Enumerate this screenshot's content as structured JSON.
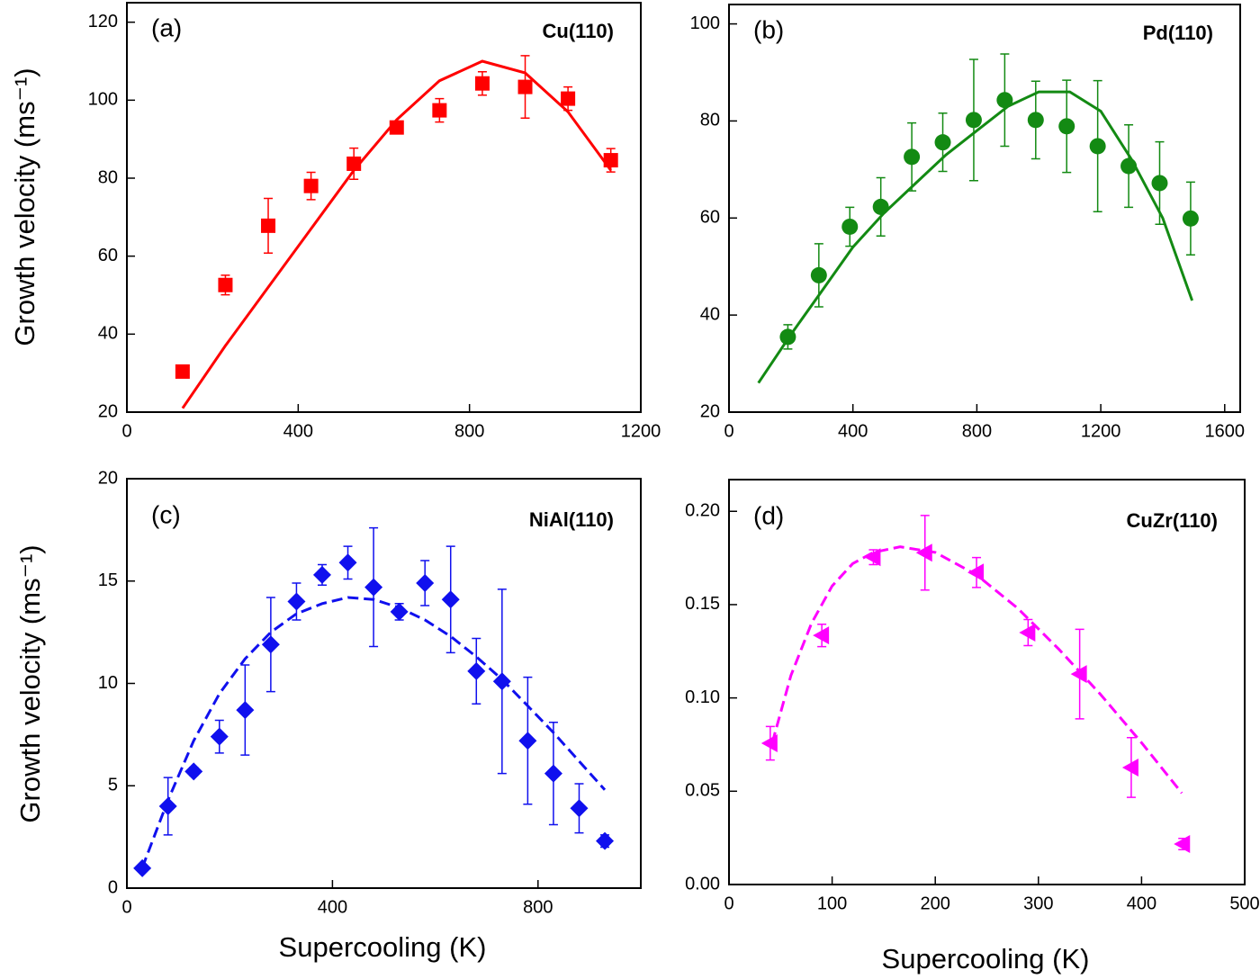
{
  "chart_data": [
    {
      "type": "scatter",
      "panel_label": "(a)",
      "annotation": "Cu(110)",
      "ylabel": "Growth velocity (ms⁻¹)",
      "marker": "square",
      "color": "#ff0000",
      "x": [
        130,
        230,
        330,
        430,
        530,
        630,
        730,
        830,
        930,
        1030,
        1130
      ],
      "values": [
        30.4,
        52.6,
        67.8,
        78,
        83.7,
        93,
        97.4,
        104.3,
        103.4,
        100.4,
        84.6
      ],
      "errors": [
        1.5,
        2.5,
        7,
        3.5,
        4,
        1.5,
        3,
        3,
        8,
        3,
        3
      ],
      "fit": {
        "dashed": false,
        "x": [
          130,
          230,
          330,
          430,
          530,
          630,
          730,
          830,
          930,
          1030,
          1130
        ],
        "values": [
          21,
          37,
          52,
          67,
          82,
          95,
          105,
          110,
          107,
          97,
          82
        ]
      },
      "xlim": [
        0,
        1200
      ],
      "ylim": [
        20,
        125
      ],
      "xticks": [
        0,
        400,
        800,
        1200
      ],
      "yticks": [
        20,
        40,
        60,
        80,
        100,
        120
      ]
    },
    {
      "type": "scatter",
      "panel_label": "(b)",
      "annotation": "Pd(110)",
      "marker": "circle",
      "color": "#138a13",
      "x": [
        190,
        290,
        390,
        490,
        590,
        690,
        790,
        890,
        990,
        1090,
        1190,
        1290,
        1390,
        1490
      ],
      "values": [
        35.5,
        48.2,
        58.2,
        62.3,
        72.6,
        75.6,
        80.2,
        84.3,
        80.2,
        78.9,
        74.8,
        70.7,
        67.2,
        59.9
      ],
      "errors": [
        2.5,
        6.5,
        4,
        6,
        7,
        6,
        12.5,
        9.5,
        8,
        9.5,
        13.5,
        8.5,
        8.5,
        7.5
      ],
      "fit": {
        "dashed": false,
        "x": [
          95,
          200,
          300,
          400,
          500,
          600,
          700,
          800,
          900,
          1000,
          1100,
          1200,
          1300,
          1400,
          1495
        ],
        "values": [
          26,
          36,
          45,
          54,
          61,
          67,
          73,
          78,
          83,
          86,
          86,
          82,
          72,
          60,
          43
        ]
      },
      "xlim": [
        0,
        1650
      ],
      "ylim": [
        20,
        104
      ],
      "xticks": [
        0,
        400,
        800,
        1200,
        1600
      ],
      "yticks": [
        20,
        40,
        60,
        80,
        100
      ]
    },
    {
      "type": "scatter",
      "panel_label": "(c)",
      "annotation": "NiAl(110)",
      "ylabel": "Growth velocity (ms⁻¹)",
      "xlabel": "Supercooling (K)",
      "marker": "diamond",
      "color": "#1010ee",
      "x": [
        30,
        80,
        130,
        180,
        230,
        280,
        330,
        380,
        430,
        480,
        530,
        580,
        630,
        680,
        730,
        780,
        830,
        880,
        930
      ],
      "values": [
        0.97,
        4.0,
        5.7,
        7.4,
        8.7,
        11.9,
        14.0,
        15.3,
        15.9,
        14.7,
        13.5,
        14.9,
        14.1,
        10.6,
        10.1,
        7.2,
        5.6,
        3.9,
        2.3
      ],
      "errors": [
        0.1,
        1.4,
        0.2,
        0.8,
        2.2,
        2.3,
        0.9,
        0.5,
        0.8,
        2.9,
        0.4,
        1.1,
        2.6,
        1.6,
        4.5,
        3.1,
        2.5,
        1.2,
        0.3
      ],
      "fit": {
        "dashed": true,
        "x": [
          30,
          80,
          130,
          180,
          230,
          280,
          330,
          380,
          430,
          480,
          530,
          580,
          630,
          680,
          730,
          780,
          830,
          880,
          930
        ],
        "values": [
          1.0,
          4.3,
          7.2,
          9.5,
          11.2,
          12.5,
          13.4,
          13.9,
          14.2,
          14.1,
          13.7,
          13.1,
          12.3,
          11.3,
          10.2,
          8.9,
          7.6,
          6.2,
          4.8
        ]
      },
      "xlim": [
        0,
        1000
      ],
      "ylim": [
        0,
        20
      ],
      "xticks": [
        0,
        400,
        800
      ],
      "yticks": [
        0,
        5,
        10,
        15,
        20
      ]
    },
    {
      "type": "scatter",
      "panel_label": "(d)",
      "annotation": "CuZr(110)",
      "xlabel": "Supercooling (K)",
      "marker": "triangle-left",
      "color": "#ff00ff",
      "x": [
        40,
        90,
        140,
        190,
        240,
        290,
        340,
        390,
        440
      ],
      "values": [
        0.0757,
        0.1335,
        0.1754,
        0.1778,
        0.1672,
        0.135,
        0.1128,
        0.0627,
        0.0217
      ],
      "errors": [
        0.009,
        0.006,
        0.004,
        0.02,
        0.008,
        0.007,
        0.024,
        0.016,
        0.003
      ],
      "fit": {
        "dashed": true,
        "x": [
          42,
          60,
          80,
          100,
          120,
          140,
          166,
          200,
          240,
          280,
          320,
          360,
          400,
          439
        ],
        "values": [
          0.076,
          0.112,
          0.14,
          0.16,
          0.172,
          0.178,
          0.181,
          0.178,
          0.166,
          0.148,
          0.126,
          0.102,
          0.076,
          0.049
        ]
      },
      "xlim": [
        0,
        500
      ],
      "ylim": [
        0,
        0.217
      ],
      "xticks": [
        0,
        100,
        200,
        300,
        400,
        500
      ],
      "yticks": [
        {
          "value": 0,
          "label": "0.00"
        },
        {
          "value": 0.05,
          "label": "0.05"
        },
        {
          "value": 0.1,
          "label": "0.10"
        },
        {
          "value": 0.15,
          "label": "0.15"
        },
        {
          "value": 0.2,
          "label": "0.20"
        }
      ]
    }
  ]
}
